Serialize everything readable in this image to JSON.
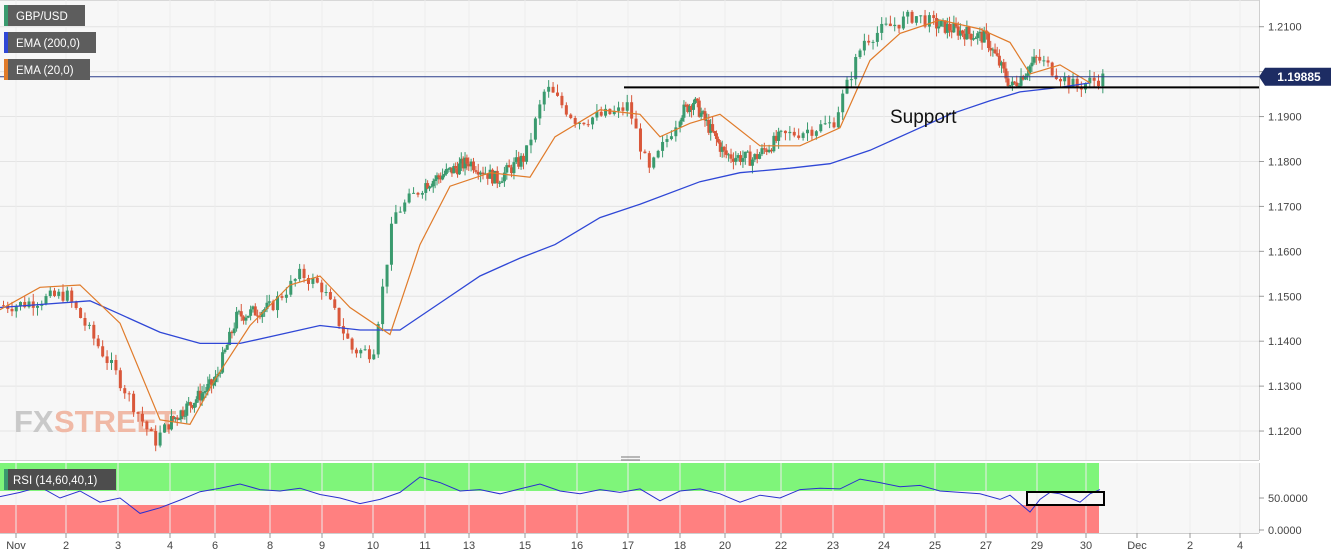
{
  "instrument": {
    "symbol": "GBP/USD"
  },
  "indicators": {
    "ema200_label": "EMA (200,0)",
    "ema20_label": "EMA (20,0)",
    "rsi_label": "RSI (14,60,40,1)"
  },
  "annotation": {
    "support_label": "Support"
  },
  "watermark": {
    "fx": "FX",
    "street": "STREET"
  },
  "colors": {
    "bull": "#3a9a6e",
    "bear": "#d9573a",
    "ema200": "#2f47d6",
    "ema20": "#e07b2a",
    "rsi_line": "#2b2fd0",
    "rsi_upper_zone": "#7ff57a",
    "rsi_lower_zone": "#ff8080",
    "price_line": "#2c3e8c"
  },
  "chart_data": [
    {
      "type": "candlestick",
      "title": "GBP/USD",
      "x_ticks": [
        "Nov",
        "2",
        "3",
        "4",
        "6",
        "8",
        "9",
        "10",
        "11",
        "13",
        "15",
        "16",
        "17",
        "18",
        "20",
        "22",
        "23",
        "24",
        "25",
        "27",
        "29",
        "30",
        "Dec",
        "2",
        "4"
      ],
      "ylim": [
        1.114,
        1.2155
      ],
      "y_ticks": [
        "1.2100",
        "1.2000",
        "1.1900",
        "1.1800",
        "1.1700",
        "1.1600",
        "1.1500",
        "1.1400",
        "1.1300",
        "1.1200"
      ],
      "last_price": 1.19885,
      "last_price_label": "1.19885",
      "support_level": 1.1965,
      "close_path": [
        [
          "Nov",
          1.148
        ],
        [
          "2",
          1.1505
        ],
        [
          "3",
          1.132
        ],
        [
          "3.7",
          1.1175
        ],
        [
          "4",
          1.122
        ],
        [
          "6",
          1.131
        ],
        [
          "6.8",
          1.1455
        ],
        [
          "8",
          1.1475
        ],
        [
          "8.6",
          1.155
        ],
        [
          "9",
          1.152
        ],
        [
          "9.6",
          1.138
        ],
        [
          "10",
          1.1375
        ],
        [
          "10.4",
          1.168
        ],
        [
          "11",
          1.175
        ],
        [
          "13",
          1.18
        ],
        [
          "14",
          1.176
        ],
        [
          "15",
          1.181
        ],
        [
          "15.4",
          1.1965
        ],
        [
          "16",
          1.189
        ],
        [
          "16.8",
          1.191
        ],
        [
          "17",
          1.1925
        ],
        [
          "17.4",
          1.1775
        ],
        [
          "18",
          1.1905
        ],
        [
          "18.6",
          1.1935
        ],
        [
          "20",
          1.1815
        ],
        [
          "21",
          1.1805
        ],
        [
          "22",
          1.1855
        ],
        [
          "23",
          1.1885
        ],
        [
          "23.6",
          1.207
        ],
        [
          "24",
          1.2095
        ],
        [
          "24.6",
          1.2125
        ],
        [
          "25",
          1.2105
        ],
        [
          "27",
          1.2075
        ],
        [
          "28",
          1.1965
        ],
        [
          "29",
          1.203
        ],
        [
          "29.8",
          1.1965
        ],
        [
          "30",
          1.1975
        ],
        [
          "30.4",
          1.19885
        ]
      ],
      "series": [
        {
          "name": "EMA (200,0)",
          "values": [
            [
              0,
              1.1475
            ],
            [
              90,
              1.149
            ],
            [
              120,
              1.146
            ],
            [
              160,
              1.142
            ],
            [
              200,
              1.1395
            ],
            [
              240,
              1.1395
            ],
            [
              280,
              1.1415
            ],
            [
              320,
              1.1435
            ],
            [
              360,
              1.1425
            ],
            [
              400,
              1.1425
            ],
            [
              440,
              1.1485
            ],
            [
              480,
              1.1545
            ],
            [
              520,
              1.1585
            ],
            [
              555,
              1.1615
            ],
            [
              600,
              1.1675
            ],
            [
              640,
              1.1705
            ],
            [
              700,
              1.1755
            ],
            [
              740,
              1.1775
            ],
            [
              790,
              1.1785
            ],
            [
              830,
              1.1795
            ],
            [
              870,
              1.1825
            ],
            [
              910,
              1.1865
            ],
            [
              950,
              1.1905
            ],
            [
              990,
              1.1935
            ],
            [
              1020,
              1.1955
            ],
            [
              1060,
              1.1965
            ],
            [
              1090,
              1.1975
            ]
          ]
        },
        {
          "name": "EMA (20,0)",
          "values": [
            [
              0,
              1.147
            ],
            [
              40,
              1.152
            ],
            [
              80,
              1.1525
            ],
            [
              120,
              1.144
            ],
            [
              160,
              1.1225
            ],
            [
              190,
              1.1215
            ],
            [
              215,
              1.1315
            ],
            [
              250,
              1.1435
            ],
            [
              290,
              1.1525
            ],
            [
              320,
              1.1545
            ],
            [
              350,
              1.1475
            ],
            [
              390,
              1.1415
            ],
            [
              420,
              1.1615
            ],
            [
              450,
              1.1745
            ],
            [
              490,
              1.1775
            ],
            [
              530,
              1.1765
            ],
            [
              555,
              1.1855
            ],
            [
              600,
              1.1915
            ],
            [
              640,
              1.1905
            ],
            [
              660,
              1.1855
            ],
            [
              690,
              1.1885
            ],
            [
              720,
              1.1905
            ],
            [
              760,
              1.1835
            ],
            [
              800,
              1.1835
            ],
            [
              840,
              1.1875
            ],
            [
              870,
              1.2025
            ],
            [
              900,
              1.2085
            ],
            [
              940,
              1.2115
            ],
            [
              980,
              1.2095
            ],
            [
              1010,
              1.2065
            ],
            [
              1030,
              1.1995
            ],
            [
              1060,
              1.2015
            ],
            [
              1090,
              1.1975
            ]
          ]
        }
      ]
    },
    {
      "type": "line",
      "title": "RSI (14,60,40,1)",
      "ylim": [
        0,
        100
      ],
      "y_ticks": [
        "50.0000",
        "0.0000"
      ],
      "upper_level": 60,
      "lower_level": 40,
      "series": [
        {
          "name": "RSI (14,60,40,1)",
          "values": [
            [
              0,
              52
            ],
            [
              20,
              58
            ],
            [
              40,
              66
            ],
            [
              60,
              50
            ],
            [
              80,
              60
            ],
            [
              100,
              44
            ],
            [
              120,
              50
            ],
            [
              140,
              28
            ],
            [
              160,
              36
            ],
            [
              180,
              47
            ],
            [
              200,
              59
            ],
            [
              220,
              64
            ],
            [
              240,
              70
            ],
            [
              260,
              62
            ],
            [
              280,
              60
            ],
            [
              300,
              64
            ],
            [
              320,
              55
            ],
            [
              340,
              50
            ],
            [
              360,
              42
            ],
            [
              380,
              48
            ],
            [
              400,
              58
            ],
            [
              420,
              80
            ],
            [
              440,
              72
            ],
            [
              460,
              60
            ],
            [
              480,
              62
            ],
            [
              500,
              56
            ],
            [
              520,
              63
            ],
            [
              540,
              70
            ],
            [
              560,
              60
            ],
            [
              580,
              56
            ],
            [
              600,
              62
            ],
            [
              620,
              58
            ],
            [
              640,
              63
            ],
            [
              660,
              46
            ],
            [
              680,
              60
            ],
            [
              700,
              63
            ],
            [
              720,
              56
            ],
            [
              740,
              44
            ],
            [
              760,
              54
            ],
            [
              780,
              50
            ],
            [
              800,
              62
            ],
            [
              820,
              64
            ],
            [
              840,
              63
            ],
            [
              860,
              77
            ],
            [
              880,
              72
            ],
            [
              900,
              66
            ],
            [
              920,
              68
            ],
            [
              940,
              60
            ],
            [
              960,
              58
            ],
            [
              980,
              56
            ],
            [
              1000,
              48
            ],
            [
              1010,
              54
            ],
            [
              1020,
              42
            ],
            [
              1030,
              30
            ],
            [
              1040,
              48
            ],
            [
              1050,
              58
            ],
            [
              1060,
              56
            ],
            [
              1070,
              50
            ],
            [
              1080,
              44
            ],
            [
              1090,
              56
            ],
            [
              1100,
              62
            ]
          ]
        }
      ]
    }
  ]
}
